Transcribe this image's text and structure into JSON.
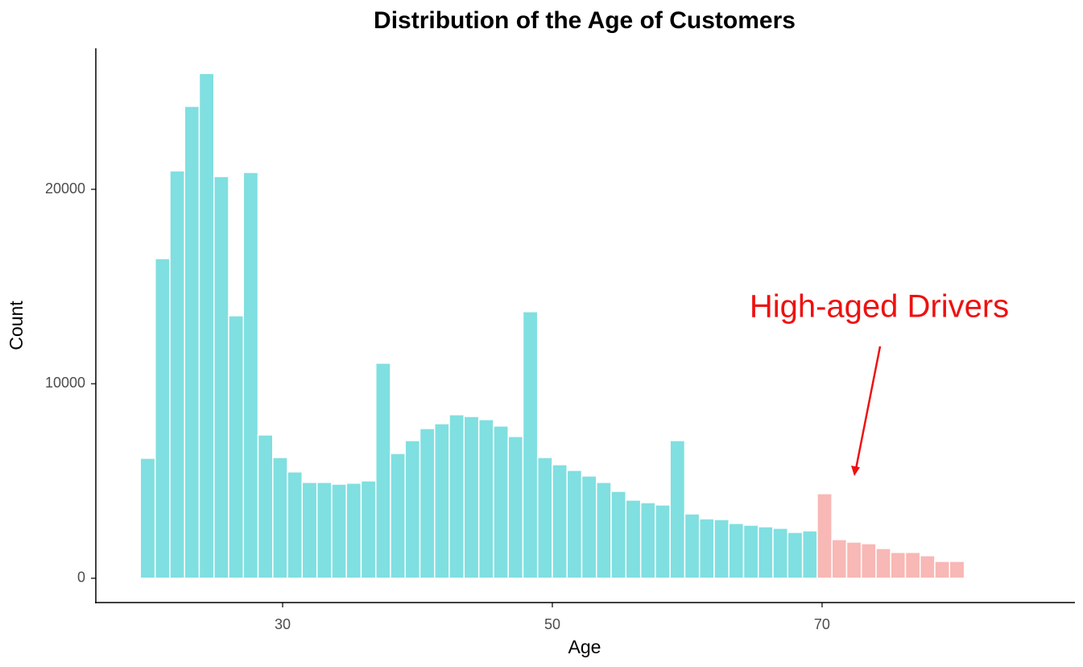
{
  "chart_data": {
    "type": "histogram",
    "title": "Distribution of the Age of Customers",
    "x_label": "Age",
    "y_label": "Count",
    "annotation": "High-aged Drivers",
    "bins": [
      19.45,
      20.55,
      21.64,
      22.73,
      23.82,
      24.91,
      26.0,
      27.09,
      28.18,
      29.27,
      30.36,
      31.45,
      32.55,
      33.64,
      34.73,
      35.82,
      36.91,
      38.0,
      39.09,
      40.18,
      41.27,
      42.36,
      43.45,
      44.55,
      45.64,
      46.73,
      47.82,
      48.91,
      50.0,
      51.09,
      52.18,
      53.27,
      54.36,
      55.45,
      56.55,
      57.64,
      58.73,
      59.82,
      60.91,
      62.0,
      63.09,
      64.18,
      65.27,
      66.36,
      67.45,
      68.55,
      69.64,
      70.73,
      71.82,
      72.91,
      74.0,
      75.09,
      76.18,
      77.27,
      78.36,
      79.45,
      80.55
    ],
    "values": [
      6170,
      16440,
      20950,
      24270,
      25960,
      20660,
      13500,
      20870,
      7370,
      6210,
      5470,
      4930,
      4930,
      4840,
      4890,
      5010,
      11060,
      6420,
      7080,
      7700,
      7950,
      8410,
      8320,
      8160,
      7830,
      7290,
      13710,
      6210,
      5840,
      5550,
      5260,
      4930,
      4470,
      4020,
      3890,
      3770,
      7080,
      3310,
      3060,
      3020,
      2820,
      2730,
      2650,
      2570,
      2360,
      2440,
      4350,
      1990,
      1860,
      1780,
      1530,
      1330,
      1330,
      1160,
      870,
      870
    ],
    "colors": [
      "#80dfe0",
      "#80dfe0",
      "#80dfe0",
      "#80dfe0",
      "#80dfe0",
      "#80dfe0",
      "#80dfe0",
      "#80dfe0",
      "#80dfe0",
      "#80dfe0",
      "#80dfe0",
      "#80dfe0",
      "#80dfe0",
      "#80dfe0",
      "#80dfe0",
      "#80dfe0",
      "#80dfe0",
      "#80dfe0",
      "#80dfe0",
      "#80dfe0",
      "#80dfe0",
      "#80dfe0",
      "#80dfe0",
      "#80dfe0",
      "#80dfe0",
      "#80dfe0",
      "#80dfe0",
      "#80dfe0",
      "#80dfe0",
      "#80dfe0",
      "#80dfe0",
      "#80dfe0",
      "#80dfe0",
      "#80dfe0",
      "#80dfe0",
      "#80dfe0",
      "#80dfe0",
      "#80dfe0",
      "#80dfe0",
      "#80dfe0",
      "#80dfe0",
      "#80dfe0",
      "#80dfe0",
      "#80dfe0",
      "#80dfe0",
      "#80dfe0",
      "#f8b8b5",
      "#f8b8b5",
      "#f8b8b5",
      "#f8b8b5",
      "#f8b8b5",
      "#f8b8b5",
      "#f8b8b5",
      "#f8b8b5",
      "#f8b8b5",
      "#f8b8b5"
    ],
    "xlim": [
      16.15,
      88.75
    ],
    "xticks": [
      30,
      50,
      70
    ],
    "ylim": [
      -1250,
      27250
    ],
    "yticks": [
      0,
      10000,
      20000
    ],
    "grid": false
  }
}
